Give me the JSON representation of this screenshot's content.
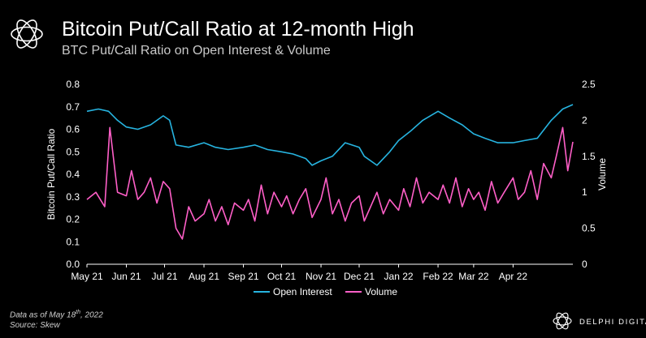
{
  "header": {
    "title": "Bitcoin Put/Call Ratio at 12-month High",
    "subtitle": "BTC Put/Call Ratio on Open Interest & Volume"
  },
  "footnote": {
    "line1_prefix": "Data as of May 18",
    "line1_sup": "th",
    "line1_suffix": ", 2022",
    "line2": "Source: Skew"
  },
  "brand": {
    "name": "DELPHI DIGITAL"
  },
  "colors": {
    "open_interest": "#27b4e0",
    "volume": "#ff5fc8",
    "background": "#000000"
  },
  "chart_data": {
    "type": "line",
    "title": "Bitcoin Put/Call Ratio at 12-month High",
    "subtitle": "BTC Put/Call Ratio on Open Interest & Volume",
    "x_ticks": [
      "May 21",
      "Jun 21",
      "Jul 21",
      "Aug 21",
      "Sep 21",
      "Oct 21",
      "Nov 21",
      "Dec 21",
      "Jan 22",
      "Feb 22",
      "Mar 22",
      "Apr 22"
    ],
    "y_left": {
      "label": "Bitcoin Put/Call Ratio",
      "range": [
        0,
        0.8
      ],
      "ticks": [
        "0.0",
        "0.1",
        "0.2",
        "0.3",
        "0.4",
        "0.5",
        "0.6",
        "0.7",
        "0.8"
      ]
    },
    "y_right": {
      "label": "Volume",
      "range": [
        0,
        2.5
      ],
      "ticks": [
        "0",
        "0.5",
        "1",
        "1.5",
        "2",
        "2.5"
      ]
    },
    "grid": false,
    "legend_position": "bottom-center",
    "series": [
      {
        "name": "Open Interest",
        "axis": "left",
        "x": [
          "2021-05-01",
          "2021-05-10",
          "2021-05-18",
          "2021-05-25",
          "2021-06-01",
          "2021-06-10",
          "2021-06-20",
          "2021-06-30",
          "2021-07-05",
          "2021-07-10",
          "2021-07-20",
          "2021-08-01",
          "2021-08-10",
          "2021-08-20",
          "2021-09-01",
          "2021-09-10",
          "2021-09-20",
          "2021-10-01",
          "2021-10-10",
          "2021-10-20",
          "2021-10-25",
          "2021-11-01",
          "2021-11-10",
          "2021-11-20",
          "2021-12-01",
          "2021-12-05",
          "2021-12-15",
          "2021-12-25",
          "2022-01-01",
          "2022-01-10",
          "2022-01-20",
          "2022-02-01",
          "2022-02-10",
          "2022-02-20",
          "2022-03-01",
          "2022-03-10",
          "2022-03-20",
          "2022-04-01",
          "2022-04-10",
          "2022-04-20",
          "2022-05-01",
          "2022-05-10",
          "2022-05-18"
        ],
        "values": [
          0.68,
          0.69,
          0.68,
          0.64,
          0.61,
          0.6,
          0.62,
          0.66,
          0.64,
          0.53,
          0.52,
          0.54,
          0.52,
          0.51,
          0.52,
          0.53,
          0.51,
          0.5,
          0.49,
          0.47,
          0.44,
          0.46,
          0.48,
          0.54,
          0.52,
          0.48,
          0.44,
          0.5,
          0.55,
          0.59,
          0.64,
          0.68,
          0.65,
          0.62,
          0.58,
          0.56,
          0.54,
          0.54,
          0.55,
          0.56,
          0.64,
          0.69,
          0.71
        ]
      },
      {
        "name": "Volume",
        "axis": "right",
        "x": [
          "2021-05-01",
          "2021-05-08",
          "2021-05-15",
          "2021-05-19",
          "2021-05-25",
          "2021-06-01",
          "2021-06-05",
          "2021-06-10",
          "2021-06-15",
          "2021-06-20",
          "2021-06-25",
          "2021-06-30",
          "2021-07-05",
          "2021-07-10",
          "2021-07-15",
          "2021-07-20",
          "2021-07-25",
          "2021-08-01",
          "2021-08-05",
          "2021-08-10",
          "2021-08-15",
          "2021-08-20",
          "2021-08-25",
          "2021-09-01",
          "2021-09-05",
          "2021-09-10",
          "2021-09-15",
          "2021-09-20",
          "2021-09-25",
          "2021-10-01",
          "2021-10-05",
          "2021-10-10",
          "2021-10-15",
          "2021-10-20",
          "2021-10-25",
          "2021-11-01",
          "2021-11-05",
          "2021-11-10",
          "2021-11-15",
          "2021-11-20",
          "2021-11-25",
          "2021-12-01",
          "2021-12-05",
          "2021-12-10",
          "2021-12-15",
          "2021-12-20",
          "2021-12-25",
          "2022-01-01",
          "2022-01-05",
          "2022-01-10",
          "2022-01-15",
          "2022-01-20",
          "2022-01-25",
          "2022-02-01",
          "2022-02-05",
          "2022-02-10",
          "2022-02-15",
          "2022-02-20",
          "2022-02-25",
          "2022-03-01",
          "2022-03-05",
          "2022-03-10",
          "2022-03-15",
          "2022-03-20",
          "2022-03-25",
          "2022-04-01",
          "2022-04-05",
          "2022-04-10",
          "2022-04-15",
          "2022-04-20",
          "2022-04-25",
          "2022-05-01",
          "2022-05-05",
          "2022-05-10",
          "2022-05-14",
          "2022-05-18"
        ],
        "values": [
          0.9,
          1.0,
          0.8,
          1.9,
          1.0,
          0.95,
          1.3,
          0.9,
          1.0,
          1.2,
          0.85,
          1.15,
          1.05,
          0.5,
          0.35,
          0.8,
          0.6,
          0.7,
          0.9,
          0.6,
          0.8,
          0.55,
          0.85,
          0.75,
          0.9,
          0.6,
          1.1,
          0.7,
          1.0,
          0.8,
          0.95,
          0.7,
          0.9,
          1.05,
          0.65,
          0.9,
          1.2,
          0.7,
          0.9,
          0.6,
          0.85,
          0.95,
          0.6,
          0.8,
          1.0,
          0.7,
          0.9,
          0.75,
          1.05,
          0.8,
          1.2,
          0.85,
          1.0,
          0.9,
          1.1,
          0.85,
          1.2,
          0.8,
          1.05,
          0.9,
          1.0,
          0.75,
          1.15,
          0.85,
          1.0,
          1.2,
          0.9,
          1.0,
          1.3,
          0.9,
          1.4,
          1.2,
          1.5,
          1.9,
          1.3,
          1.7
        ]
      }
    ]
  }
}
